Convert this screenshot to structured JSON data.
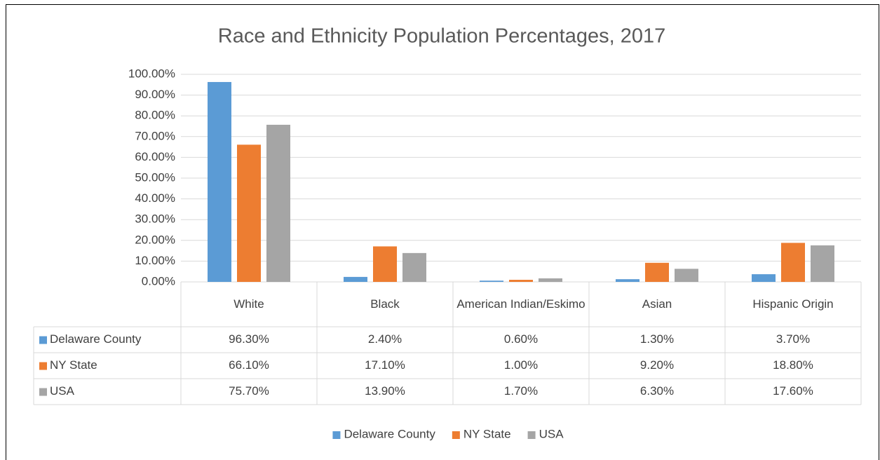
{
  "chart_data": {
    "type": "bar",
    "title": "Race and Ethnicity Population Percentages, 2017",
    "categories": [
      "White",
      "Black",
      "American Indian/Eskimo",
      "Asian",
      "Hispanic Origin"
    ],
    "series": [
      {
        "name": "Delaware County",
        "color": "#5b9bd5",
        "values": [
          96.3,
          2.4,
          0.6,
          1.3,
          3.7
        ],
        "value_labels": [
          "96.30%",
          "2.40%",
          "0.60%",
          "1.30%",
          "3.70%"
        ]
      },
      {
        "name": "NY State",
        "color": "#ed7d31",
        "values": [
          66.1,
          17.1,
          1.0,
          9.2,
          18.8
        ],
        "value_labels": [
          "66.10%",
          "17.10%",
          "1.00%",
          "9.20%",
          "18.80%"
        ]
      },
      {
        "name": "USA",
        "color": "#a5a5a5",
        "values": [
          75.7,
          13.9,
          1.7,
          6.3,
          17.6
        ],
        "value_labels": [
          "75.70%",
          "13.90%",
          "1.70%",
          "6.30%",
          "17.60%"
        ]
      }
    ],
    "ylim": [
      0,
      100
    ],
    "yticks": [
      {
        "value": 0,
        "label": "0.00%"
      },
      {
        "value": 10,
        "label": "10.00%"
      },
      {
        "value": 20,
        "label": "20.00%"
      },
      {
        "value": 30,
        "label": "30.00%"
      },
      {
        "value": 40,
        "label": "40.00%"
      },
      {
        "value": 50,
        "label": "50.00%"
      },
      {
        "value": 60,
        "label": "60.00%"
      },
      {
        "value": 70,
        "label": "70.00%"
      },
      {
        "value": 80,
        "label": "80.00%"
      },
      {
        "value": 90,
        "label": "90.00%"
      },
      {
        "value": 100,
        "label": "100.00%"
      }
    ],
    "grid": true,
    "legend": "bottom"
  }
}
